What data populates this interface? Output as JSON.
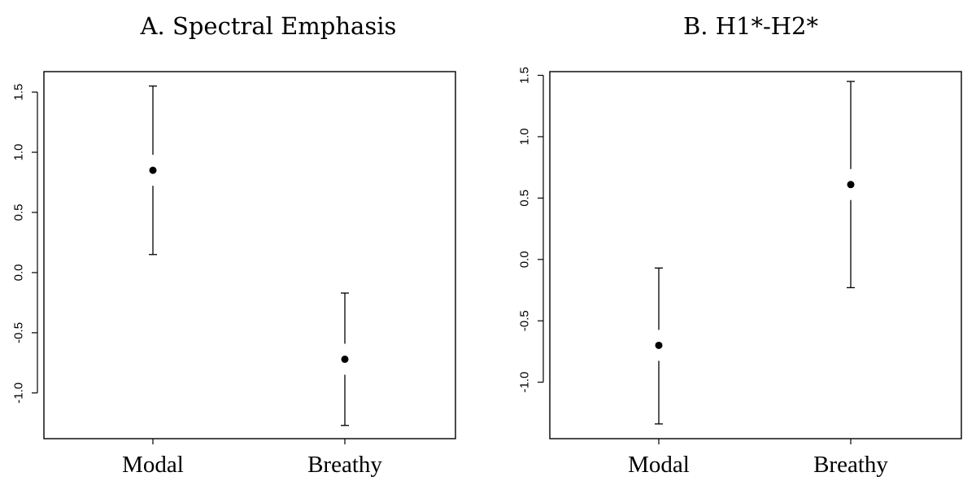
{
  "chart_data": [
    {
      "type": "scatter",
      "title": "A. Spectral Emphasis",
      "xlabel": "",
      "ylabel": "",
      "categories": [
        "Modal",
        "Breathy"
      ],
      "means": [
        0.85,
        -0.72
      ],
      "lower": [
        0.15,
        -1.27
      ],
      "upper": [
        1.55,
        -0.17
      ],
      "yticks": [
        -1.0,
        -0.5,
        0.0,
        0.5,
        1.0,
        1.5
      ],
      "ytick_labels": [
        "-1.0",
        "-0.5",
        "0.0",
        "0.5",
        "1.0",
        "1.5"
      ],
      "ylim": [
        -1.38,
        1.67
      ],
      "grid": false
    },
    {
      "type": "scatter",
      "title": "B. H1*-H2*",
      "xlabel": "",
      "ylabel": "",
      "categories": [
        "Modal",
        "Breathy"
      ],
      "means": [
        -0.7,
        0.61
      ],
      "lower": [
        -1.34,
        -0.23
      ],
      "upper": [
        -0.07,
        1.45
      ],
      "yticks": [
        -1.0,
        -0.5,
        0.0,
        0.5,
        1.0,
        1.5
      ],
      "ytick_labels": [
        "-1.0",
        "-0.5",
        "0.0",
        "0.5",
        "1.0",
        "1.5"
      ],
      "ylim": [
        -1.46,
        1.53
      ],
      "grid": false
    }
  ]
}
